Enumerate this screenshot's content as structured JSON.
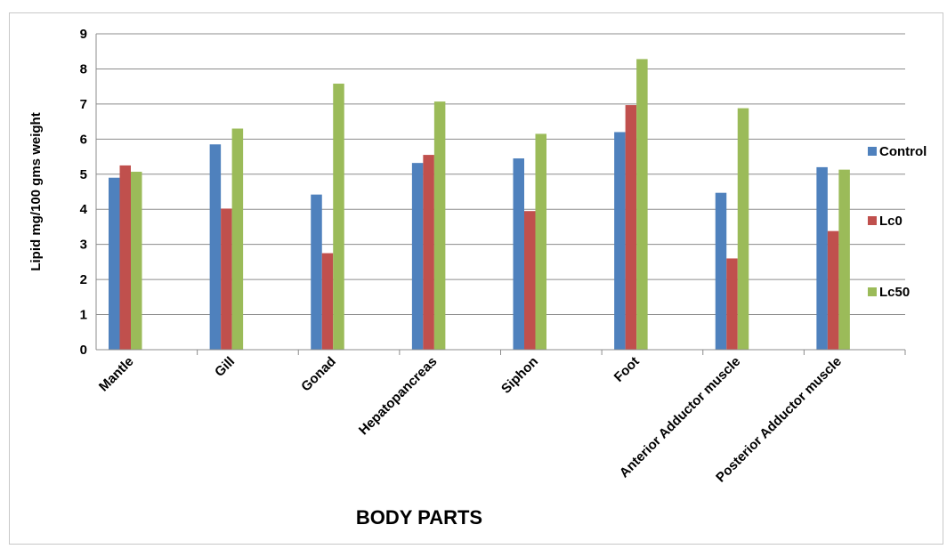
{
  "chart_data": {
    "type": "bar",
    "title": "",
    "xlabel": "BODY PARTS",
    "ylabel": "Lipid mg/100 gms weight",
    "ylim": [
      0,
      9
    ],
    "yticks": [
      "0",
      "1",
      "2",
      "3",
      "4",
      "5",
      "6",
      "7",
      "8",
      "9"
    ],
    "grid": true,
    "legend_position": "right",
    "categories": [
      "Mantle",
      "Gill",
      "Gonad",
      "Hepatopancreas",
      "Siphon",
      "Foot",
      "Anterior Adductor muscle",
      "Posterior Adductor muscle"
    ],
    "series": [
      {
        "name": "Control",
        "color": "#4f81bd",
        "values": [
          4.9,
          5.85,
          4.42,
          5.32,
          5.45,
          6.2,
          4.47,
          5.2
        ]
      },
      {
        "name": "Lc0",
        "color": "#c0504d",
        "values": [
          5.25,
          4.02,
          2.75,
          5.55,
          3.95,
          6.97,
          2.6,
          3.38
        ]
      },
      {
        "name": "Lc50",
        "color": "#9bbb59",
        "values": [
          5.07,
          6.3,
          7.58,
          7.07,
          6.15,
          8.28,
          6.88,
          5.13
        ]
      }
    ]
  }
}
